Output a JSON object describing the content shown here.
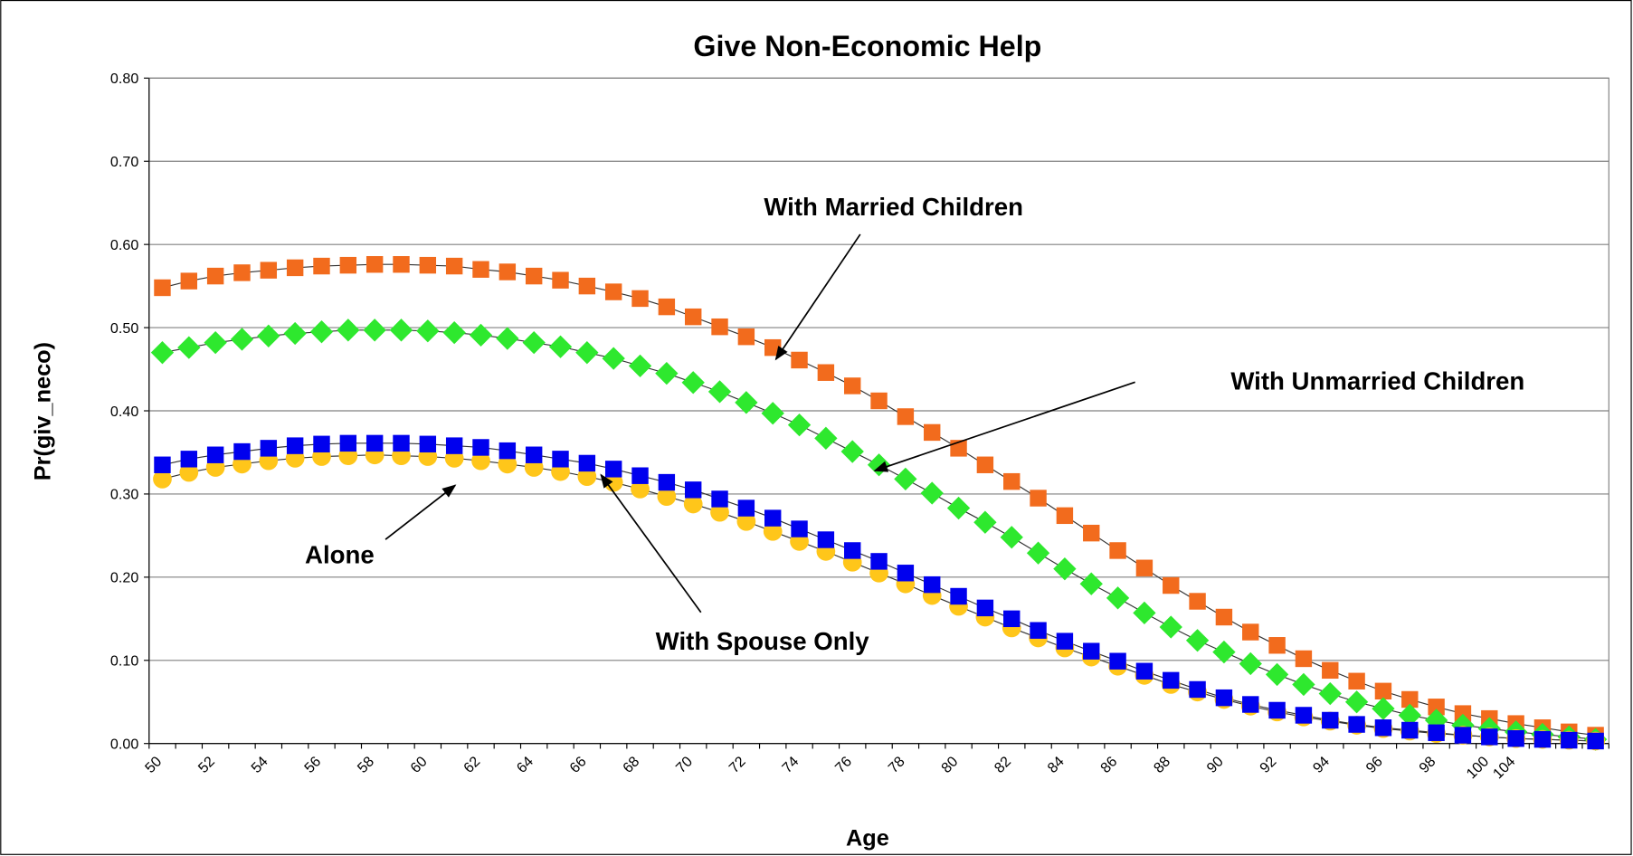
{
  "chart_data": {
    "type": "line",
    "title": "Give Non-Economic Help",
    "x_label": "Age",
    "y_label": "Pr(giv_neco)",
    "categories": [
      "50",
      null,
      "52",
      null,
      "54",
      null,
      "56",
      null,
      "58",
      null,
      "60",
      null,
      "62",
      null,
      "64",
      null,
      "66",
      null,
      "68",
      null,
      "70",
      null,
      "72",
      null,
      "74",
      null,
      "76",
      null,
      "78",
      null,
      "80",
      null,
      "82",
      null,
      "84",
      null,
      "86",
      null,
      "88",
      null,
      "90",
      null,
      "92",
      null,
      "94",
      null,
      "96",
      null,
      "98",
      null,
      "100",
      "104",
      null,
      null,
      null
    ],
    "ylim": [
      0,
      0.8
    ],
    "yticks": [
      {
        "value": 0,
        "label": "0.00"
      },
      {
        "value": 0.1,
        "label": "0.10"
      },
      {
        "value": 0.2,
        "label": "0.20"
      },
      {
        "value": 0.3,
        "label": "0.30"
      },
      {
        "value": 0.4,
        "label": "0.40"
      },
      {
        "value": 0.5,
        "label": "0.50"
      },
      {
        "value": 0.6,
        "label": "0.60"
      },
      {
        "value": 0.7,
        "label": "0.70"
      },
      {
        "value": 0.8,
        "label": "0.80"
      }
    ],
    "grid": true,
    "series": [
      {
        "name": "With Married Children",
        "color": "#f26b1d",
        "marker": "square",
        "values": [
          0.548,
          0.556,
          0.562,
          0.566,
          0.569,
          0.572,
          0.574,
          0.575,
          0.576,
          0.576,
          0.575,
          0.574,
          0.57,
          0.567,
          0.562,
          0.557,
          0.55,
          0.543,
          0.535,
          0.525,
          0.513,
          0.501,
          0.489,
          0.476,
          0.461,
          0.446,
          0.43,
          0.412,
          0.393,
          0.374,
          0.355,
          0.335,
          0.315,
          0.295,
          0.274,
          0.253,
          0.232,
          0.211,
          0.19,
          0.171,
          0.152,
          0.134,
          0.118,
          0.102,
          0.088,
          0.075,
          0.063,
          0.053,
          0.044,
          0.036,
          0.03,
          0.024,
          0.019,
          0.014,
          0.01
        ]
      },
      {
        "name": "With Unmarried Children",
        "color": "#2ee82e",
        "marker": "diamond",
        "values": [
          0.47,
          0.476,
          0.482,
          0.486,
          0.49,
          0.493,
          0.495,
          0.497,
          0.497,
          0.497,
          0.496,
          0.494,
          0.491,
          0.487,
          0.482,
          0.477,
          0.47,
          0.463,
          0.454,
          0.445,
          0.434,
          0.423,
          0.41,
          0.397,
          0.383,
          0.367,
          0.351,
          0.335,
          0.318,
          0.301,
          0.283,
          0.266,
          0.248,
          0.229,
          0.21,
          0.192,
          0.175,
          0.157,
          0.14,
          0.124,
          0.11,
          0.096,
          0.083,
          0.071,
          0.06,
          0.05,
          0.042,
          0.034,
          0.028,
          0.022,
          0.018,
          0.014,
          0.011,
          0.008,
          0.005
        ]
      },
      {
        "name": "Alone",
        "color": "#ffc61a",
        "marker": "circle",
        "values": [
          0.318,
          0.326,
          0.332,
          0.336,
          0.34,
          0.343,
          0.345,
          0.346,
          0.347,
          0.346,
          0.345,
          0.343,
          0.34,
          0.336,
          0.332,
          0.327,
          0.321,
          0.314,
          0.306,
          0.297,
          0.288,
          0.278,
          0.267,
          0.255,
          0.243,
          0.231,
          0.218,
          0.205,
          0.192,
          0.178,
          0.165,
          0.152,
          0.139,
          0.127,
          0.115,
          0.104,
          0.093,
          0.082,
          0.071,
          0.062,
          0.053,
          0.045,
          0.038,
          0.032,
          0.027,
          0.022,
          0.018,
          0.015,
          0.012,
          0.01,
          0.008,
          0.006,
          0.005,
          0.004,
          0.003
        ]
      },
      {
        "name": "With Spouse Only",
        "color": "#0000ee",
        "marker": "square",
        "values": [
          0.335,
          0.342,
          0.347,
          0.351,
          0.355,
          0.358,
          0.36,
          0.361,
          0.361,
          0.361,
          0.36,
          0.358,
          0.356,
          0.352,
          0.347,
          0.342,
          0.337,
          0.33,
          0.322,
          0.314,
          0.305,
          0.294,
          0.283,
          0.271,
          0.258,
          0.245,
          0.232,
          0.219,
          0.205,
          0.191,
          0.177,
          0.163,
          0.15,
          0.136,
          0.123,
          0.111,
          0.099,
          0.087,
          0.076,
          0.065,
          0.055,
          0.047,
          0.04,
          0.034,
          0.028,
          0.023,
          0.019,
          0.016,
          0.013,
          0.01,
          0.008,
          0.006,
          0.005,
          0.004,
          0.003
        ]
      }
    ]
  }
}
